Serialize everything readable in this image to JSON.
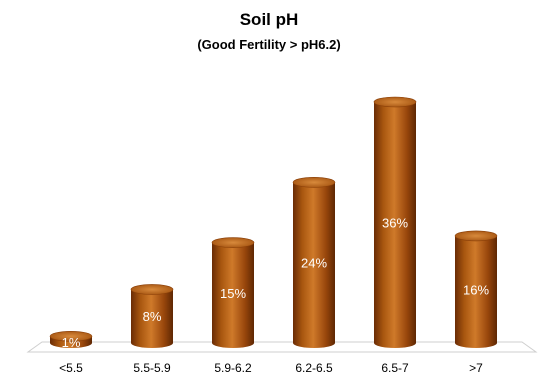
{
  "chart_data": {
    "type": "bar",
    "title": "Soil pH",
    "subtitle": "(Good Fertility > pH6.2)",
    "categories": [
      "<5.5",
      "5.5-5.9",
      "5.9-6.2",
      "6.2-6.5",
      "6.5-7",
      ">7"
    ],
    "values": [
      1,
      8,
      15,
      24,
      36,
      16
    ],
    "data_labels": [
      "1%",
      "8%",
      "15%",
      "24%",
      "36%",
      "16%"
    ],
    "ylim": [
      0,
      40
    ],
    "grid": false,
    "legend": "none",
    "bar_style": "3d-cylinder",
    "bar_color": "#9a4a0c"
  }
}
